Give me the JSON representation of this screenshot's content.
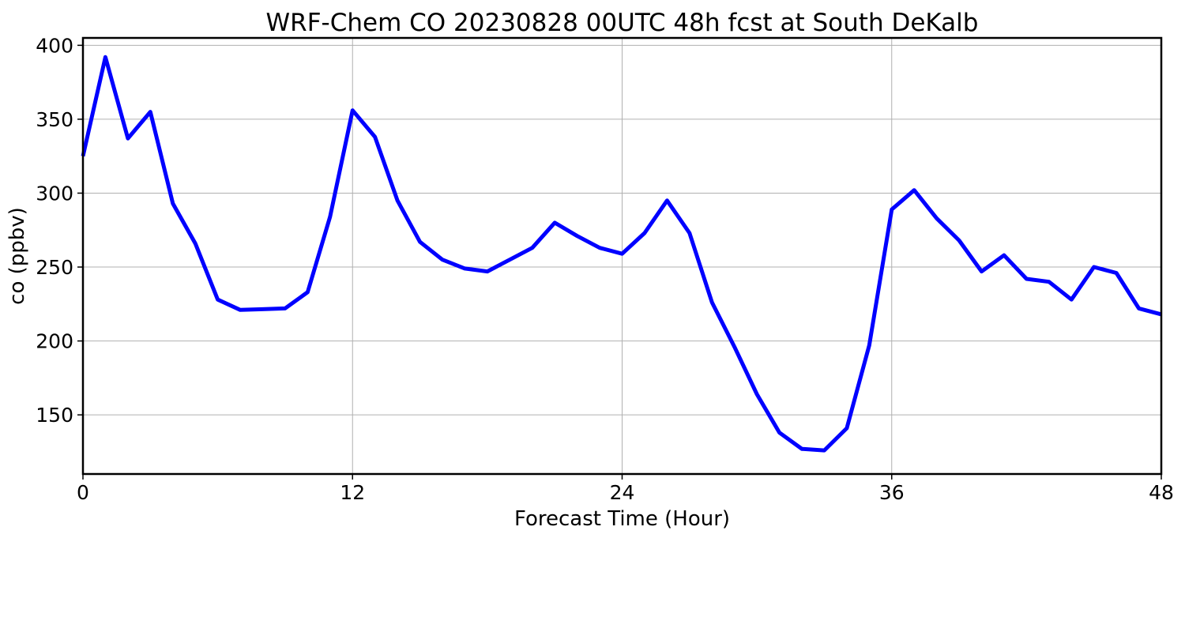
{
  "chart_data": {
    "type": "line",
    "title": "WRF-Chem CO  20230828 00UTC 48h fcst at South DeKalb",
    "xlabel": "Forecast Time (Hour)",
    "ylabel": "co  (ppbv)",
    "xlim": [
      0,
      48
    ],
    "ylim": [
      110,
      405
    ],
    "xticks": [
      0,
      12,
      24,
      36,
      48
    ],
    "yticks": [
      150,
      200,
      250,
      300,
      350,
      400
    ],
    "grid": true,
    "series": [
      {
        "color": "#0000ff",
        "x": [
          0,
          1,
          2,
          3,
          4,
          5,
          6,
          7,
          8,
          9,
          10,
          11,
          12,
          13,
          14,
          15,
          16,
          17,
          18,
          19,
          20,
          21,
          22,
          23,
          24,
          25,
          26,
          27,
          28,
          29,
          30,
          31,
          32,
          33,
          34,
          35,
          36,
          37,
          38,
          39,
          40,
          41,
          42,
          43,
          44,
          45,
          46,
          47,
          48
        ],
        "values": [
          325,
          392,
          337,
          355,
          293,
          266,
          228,
          221,
          221.5,
          222,
          233,
          284,
          356,
          338,
          295,
          267,
          255,
          249,
          247,
          255,
          263,
          280,
          271,
          263,
          259,
          273,
          295,
          273,
          226,
          196,
          164,
          138,
          127,
          126,
          141,
          197,
          289,
          302,
          283,
          268,
          247,
          258,
          242,
          240,
          228,
          250,
          246,
          222,
          218
        ]
      }
    ]
  }
}
